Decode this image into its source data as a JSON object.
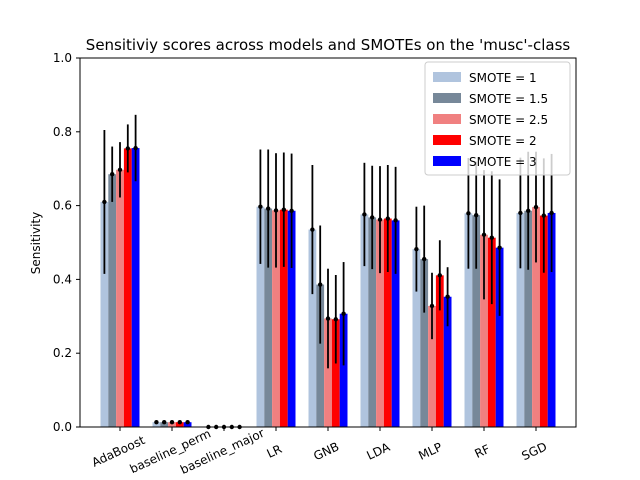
{
  "chart_data": {
    "type": "bar",
    "title": "Sensitiviy scores across models and SMOTEs on the 'musc'-class",
    "xlabel": "",
    "ylabel": "Sensitivity",
    "ylim": [
      0,
      1.0
    ],
    "yticks": [
      "0.0",
      "0.2",
      "0.4",
      "0.6",
      "0.8",
      "1.0"
    ],
    "categories": [
      "AdaBoost",
      "baseline_perm",
      "baseline_major",
      "LR",
      "GNB",
      "LDA",
      "MLP",
      "RF",
      "SGD"
    ],
    "legend_position": "top-right",
    "grid": false,
    "error_bars": true,
    "series": [
      {
        "name": "SMOTE = 1",
        "color": "#b0c4de",
        "values": [
          0.61,
          0.013,
          0.0,
          0.597,
          0.535,
          0.576,
          0.482,
          0.579,
          0.58
        ],
        "errors": [
          0.195,
          0.0,
          0.0,
          0.155,
          0.175,
          0.14,
          0.115,
          0.15,
          0.15
        ]
      },
      {
        "name": "SMOTE = 1.5",
        "color": "#778899",
        "values": [
          0.685,
          0.013,
          0.0,
          0.592,
          0.386,
          0.568,
          0.455,
          0.574,
          0.586
        ],
        "errors": [
          0.075,
          0.0,
          0.0,
          0.16,
          0.16,
          0.14,
          0.145,
          0.145,
          0.16
        ]
      },
      {
        "name": "SMOTE = 2.5",
        "color": "#f08080",
        "values": [
          0.697,
          0.013,
          0.0,
          0.587,
          0.294,
          0.562,
          0.328,
          0.521,
          0.596
        ],
        "errors": [
          0.075,
          0.0,
          0.0,
          0.155,
          0.135,
          0.145,
          0.09,
          0.175,
          0.15
        ]
      },
      {
        "name": "SMOTE = 2",
        "color": "#ff0000",
        "values": [
          0.755,
          0.013,
          0.0,
          0.589,
          0.292,
          0.565,
          0.411,
          0.513,
          0.573
        ],
        "errors": [
          0.065,
          0.0,
          0.0,
          0.155,
          0.12,
          0.145,
          0.095,
          0.18,
          0.155
        ]
      },
      {
        "name": "SMOTE = 3",
        "color": "#0000ff",
        "values": [
          0.756,
          0.013,
          0.0,
          0.586,
          0.307,
          0.56,
          0.353,
          0.486,
          0.58
        ],
        "errors": [
          0.09,
          0.0,
          0.0,
          0.155,
          0.14,
          0.145,
          0.08,
          0.185,
          0.16
        ]
      }
    ]
  }
}
